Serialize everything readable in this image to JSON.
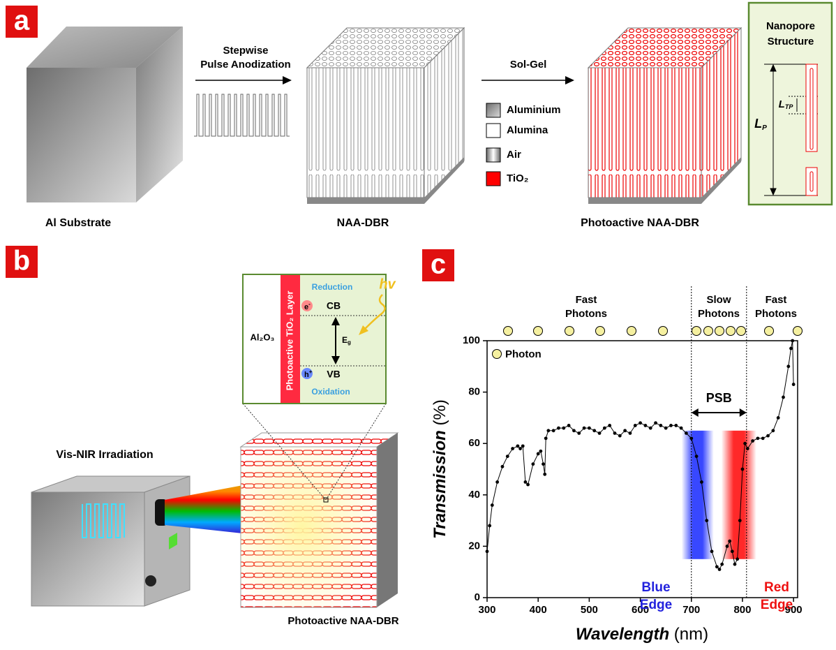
{
  "panel_a": {
    "label": "a",
    "substrate": "Al Substrate",
    "step1": [
      "Stepwise",
      "Pulse Anodization"
    ],
    "naa": "NAA-DBR",
    "step2": "Sol-Gel",
    "photoactive": "Photoactive NAA-DBR",
    "legend": [
      "Aluminium",
      "Alumina",
      "Air",
      "TiO₂"
    ],
    "nanopore": {
      "title": [
        "Nanopore",
        "Structure"
      ],
      "ltp": {
        "main": "L",
        "sub": "TP"
      },
      "lp": {
        "main": "L",
        "sub": "P"
      }
    }
  },
  "panel_b": {
    "label": "b",
    "source": "Vis-NIR Irradiation",
    "sample": "Photoactive NAA-DBR",
    "inset": {
      "oxide": "Al₂O₃",
      "layer": "Photoactive TiO₂ Layer",
      "reduction": "Reduction",
      "oxidation": "Oxidation",
      "cb": "CB",
      "vb": "VB",
      "gap": {
        "main": "E",
        "sub": "g"
      },
      "electron": {
        "main": "e",
        "sup": "-"
      },
      "hole": {
        "main": "h",
        "sup": "+"
      },
      "light": "hv"
    }
  },
  "chart_data": {
    "type": "scatter",
    "label": "c",
    "xlabel": {
      "main": "Wavelength",
      "unit": "(nm)"
    },
    "ylabel": {
      "main": "Transmission",
      "unit": "(%)"
    },
    "xlim": [
      300,
      908
    ],
    "ylim": [
      0,
      100
    ],
    "xticks": [
      300,
      400,
      500,
      600,
      700,
      800,
      900
    ],
    "yticks": [
      0,
      20,
      40,
      60,
      80,
      100
    ],
    "psb_range": [
      700,
      808
    ],
    "annotations": {
      "fast_left": [
        "Fast",
        "Photons"
      ],
      "slow": [
        "Slow",
        "Photons"
      ],
      "fast_right": [
        "Fast",
        "Photons"
      ],
      "psb": "PSB",
      "blue_edge": [
        "Blue",
        "Edge"
      ],
      "red_edge": [
        "Red",
        "Edge"
      ],
      "legend": "Photon"
    },
    "series": [
      {
        "color": "#000000",
        "x": [
          300,
          305,
          310,
          320,
          330,
          340,
          350,
          360,
          365,
          370,
          375,
          380,
          390,
          400,
          405,
          410,
          413,
          415,
          420,
          430,
          440,
          450,
          460,
          470,
          480,
          490,
          500,
          510,
          520,
          530,
          540,
          550,
          560,
          570,
          580,
          590,
          600,
          610,
          620,
          630,
          640,
          650,
          660,
          670,
          680,
          690,
          700,
          710,
          720,
          730,
          740,
          750,
          755,
          760,
          770,
          775,
          780,
          785,
          790,
          795,
          800,
          805,
          810,
          820,
          830,
          840,
          850,
          860,
          870,
          880,
          890,
          895,
          898,
          900
        ],
        "values": [
          18,
          28,
          36,
          45,
          51,
          55,
          58,
          59,
          58,
          59,
          45,
          44,
          52,
          56,
          57,
          52,
          48,
          62,
          65,
          65,
          66,
          66,
          67,
          65,
          64,
          66,
          66,
          65,
          64,
          66,
          67,
          64,
          63,
          65,
          64,
          67,
          68,
          67,
          66,
          68,
          67,
          66,
          67,
          67,
          66,
          64,
          62,
          55,
          45,
          30,
          18,
          12,
          11,
          13,
          20,
          22,
          18,
          13,
          15,
          30,
          50,
          60,
          58,
          61,
          62,
          62,
          63,
          65,
          70,
          78,
          90,
          97,
          100,
          83
        ]
      }
    ]
  }
}
